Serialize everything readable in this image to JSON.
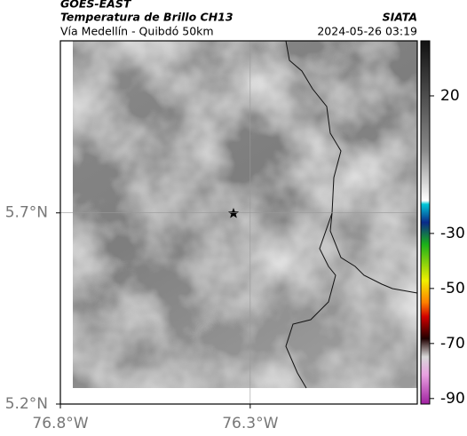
{
  "header": {
    "title": "GOES-EAST",
    "subtitle": "Temperatura de Brillo CH13",
    "route": "Vía Medellín - Quibdó 50km",
    "source": "SIATA",
    "datetime": "2024-05-26 03:19"
  },
  "map": {
    "xlim": [
      -76.8,
      -75.86
    ],
    "ylim": [
      5.2,
      6.15
    ],
    "xticks": [
      {
        "value": -76.8,
        "label": "76.8°W"
      },
      {
        "value": -76.3,
        "label": "76.3°W"
      }
    ],
    "yticks": [
      {
        "value": 5.2,
        "label": "5.2°N"
      },
      {
        "value": 5.7,
        "label": "5.7°N"
      }
    ]
  },
  "colorbar": {
    "range": [
      40,
      -92
    ],
    "ticks": [
      20,
      -30,
      -50,
      -70,
      -90
    ]
  }
}
